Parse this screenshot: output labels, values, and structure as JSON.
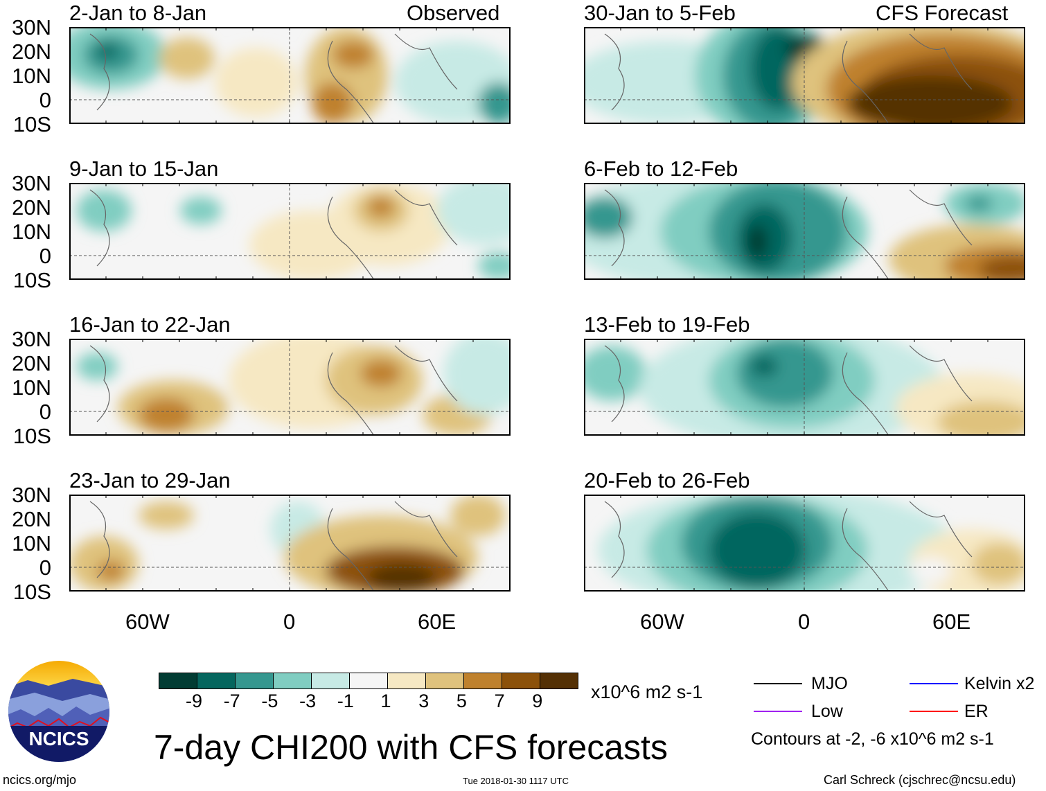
{
  "left_header": "Observed",
  "right_header": "CFS Forecast",
  "panels": [
    {
      "title": "2-Jan to 8-Jan",
      "side": "left"
    },
    {
      "title": "9-Jan to 15-Jan",
      "side": "left"
    },
    {
      "title": "16-Jan to 22-Jan",
      "side": "left"
    },
    {
      "title": "23-Jan to 29-Jan",
      "side": "left"
    },
    {
      "title": "30-Jan to 5-Feb",
      "side": "right"
    },
    {
      "title": "6-Feb to 12-Feb",
      "side": "right"
    },
    {
      "title": "13-Feb to 19-Feb",
      "side": "right"
    },
    {
      "title": "20-Feb to 26-Feb",
      "side": "right"
    }
  ],
  "lat_labels": [
    "30N",
    "20N",
    "10N",
    "0",
    "10S"
  ],
  "lon_labels": [
    "60W",
    "0",
    "60E"
  ],
  "colorbar": {
    "colors": [
      "#013c33",
      "#05665e",
      "#35978f",
      "#80cdc1",
      "#c7eae5",
      "#f5f5f5",
      "#f6e8c3",
      "#dfc27d",
      "#bf812d",
      "#8c510a",
      "#543005"
    ],
    "ticks": [
      "-9",
      "-7",
      "-5",
      "-3",
      "-1",
      "1",
      "3",
      "5",
      "7",
      "9"
    ],
    "units": "x10^6 m2 s-1"
  },
  "title": "7-day CHI200 with CFS forecasts",
  "legend": [
    {
      "label": "MJO",
      "color": "#000000"
    },
    {
      "label": "Low",
      "color": "#a020f0"
    },
    {
      "label": "Kelvin x2",
      "color": "#0000ff"
    },
    {
      "label": "ER",
      "color": "#ff0000"
    }
  ],
  "contour_note": "Contours at -2, -6 x10^6 m2 s-1",
  "logo_text": "NCICS",
  "footer": {
    "left": "ncics.org/mjo",
    "center": "Tue 2018-01-30 1117 UTC",
    "right": "Carl Schreck (cjschrec@ncsu.edu)"
  }
}
